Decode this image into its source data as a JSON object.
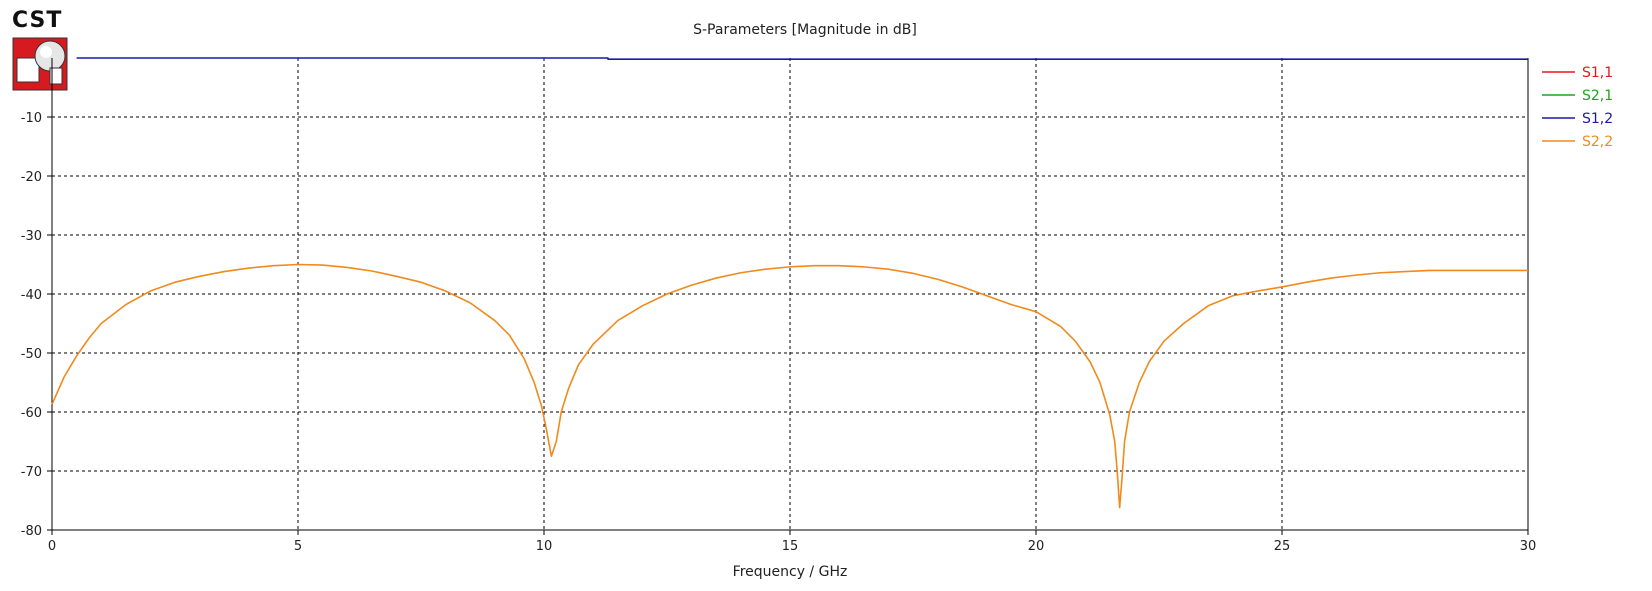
{
  "app": {
    "logo_text": "CST"
  },
  "chart_data": {
    "type": "line",
    "title": "S-Parameters [Magnitude in dB]",
    "xlabel": "Frequency / GHz",
    "ylabel": "",
    "xlim": [
      0,
      30
    ],
    "ylim": [
      -80,
      0
    ],
    "xticks": [
      0,
      5,
      10,
      15,
      20,
      25,
      30
    ],
    "yticks": [
      -10,
      -20,
      -30,
      -40,
      -50,
      -60,
      -70,
      -80
    ],
    "grid": true,
    "legend_position": "right",
    "series": [
      {
        "name": "S1,1",
        "color": "#e8141c",
        "points": []
      },
      {
        "name": "S2,1",
        "color": "#1aa51a",
        "points": []
      },
      {
        "name": "S1,2",
        "color": "#1a1aa0",
        "points": [
          [
            0.5,
            0.0
          ],
          [
            11.3,
            0.0
          ],
          [
            11.3,
            -0.2
          ],
          [
            30,
            -0.2
          ]
        ]
      },
      {
        "name": "S2,2",
        "color": "#f08a1c",
        "points": [
          [
            0,
            -58.7
          ],
          [
            0.25,
            -54.0
          ],
          [
            0.5,
            -50.5
          ],
          [
            0.75,
            -47.5
          ],
          [
            1.0,
            -45.0
          ],
          [
            1.5,
            -41.8
          ],
          [
            2.0,
            -39.5
          ],
          [
            2.5,
            -38.0
          ],
          [
            3.0,
            -37.0
          ],
          [
            3.5,
            -36.2
          ],
          [
            4.0,
            -35.6
          ],
          [
            4.5,
            -35.2
          ],
          [
            5.0,
            -35.0
          ],
          [
            5.5,
            -35.1
          ],
          [
            6.0,
            -35.5
          ],
          [
            6.5,
            -36.1
          ],
          [
            7.0,
            -37.0
          ],
          [
            7.5,
            -38.0
          ],
          [
            8.0,
            -39.5
          ],
          [
            8.5,
            -41.5
          ],
          [
            9.0,
            -44.5
          ],
          [
            9.3,
            -47.0
          ],
          [
            9.6,
            -51.0
          ],
          [
            9.8,
            -55.0
          ],
          [
            9.95,
            -59.0
          ],
          [
            10.05,
            -63.0
          ],
          [
            10.15,
            -67.5
          ],
          [
            10.25,
            -65.0
          ],
          [
            10.35,
            -60.0
          ],
          [
            10.5,
            -56.0
          ],
          [
            10.7,
            -52.0
          ],
          [
            11.0,
            -48.5
          ],
          [
            11.5,
            -44.5
          ],
          [
            12.0,
            -42.0
          ],
          [
            12.5,
            -40.0
          ],
          [
            13.0,
            -38.5
          ],
          [
            13.5,
            -37.3
          ],
          [
            14.0,
            -36.4
          ],
          [
            14.5,
            -35.8
          ],
          [
            15.0,
            -35.4
          ],
          [
            15.5,
            -35.2
          ],
          [
            16.0,
            -35.2
          ],
          [
            16.5,
            -35.4
          ],
          [
            17.0,
            -35.8
          ],
          [
            17.5,
            -36.5
          ],
          [
            18.0,
            -37.5
          ],
          [
            18.5,
            -38.8
          ],
          [
            19.0,
            -40.3
          ],
          [
            19.5,
            -41.8
          ],
          [
            20.0,
            -43.0
          ],
          [
            20.5,
            -45.5
          ],
          [
            20.8,
            -48.0
          ],
          [
            21.1,
            -51.5
          ],
          [
            21.3,
            -55.0
          ],
          [
            21.5,
            -60.5
          ],
          [
            21.6,
            -65.0
          ],
          [
            21.65,
            -70.0
          ],
          [
            21.7,
            -76.2
          ],
          [
            21.75,
            -71.0
          ],
          [
            21.8,
            -65.0
          ],
          [
            21.9,
            -60.0
          ],
          [
            22.1,
            -55.0
          ],
          [
            22.3,
            -51.5
          ],
          [
            22.6,
            -48.0
          ],
          [
            23.0,
            -45.0
          ],
          [
            23.5,
            -42.0
          ],
          [
            24.0,
            -40.3
          ],
          [
            24.5,
            -39.5
          ],
          [
            25.0,
            -38.8
          ],
          [
            25.5,
            -38.0
          ],
          [
            26.0,
            -37.3
          ],
          [
            26.5,
            -36.8
          ],
          [
            27.0,
            -36.4
          ],
          [
            28.0,
            -36.0
          ],
          [
            29.0,
            -36.0
          ],
          [
            30.0,
            -36.0
          ]
        ]
      }
    ]
  }
}
